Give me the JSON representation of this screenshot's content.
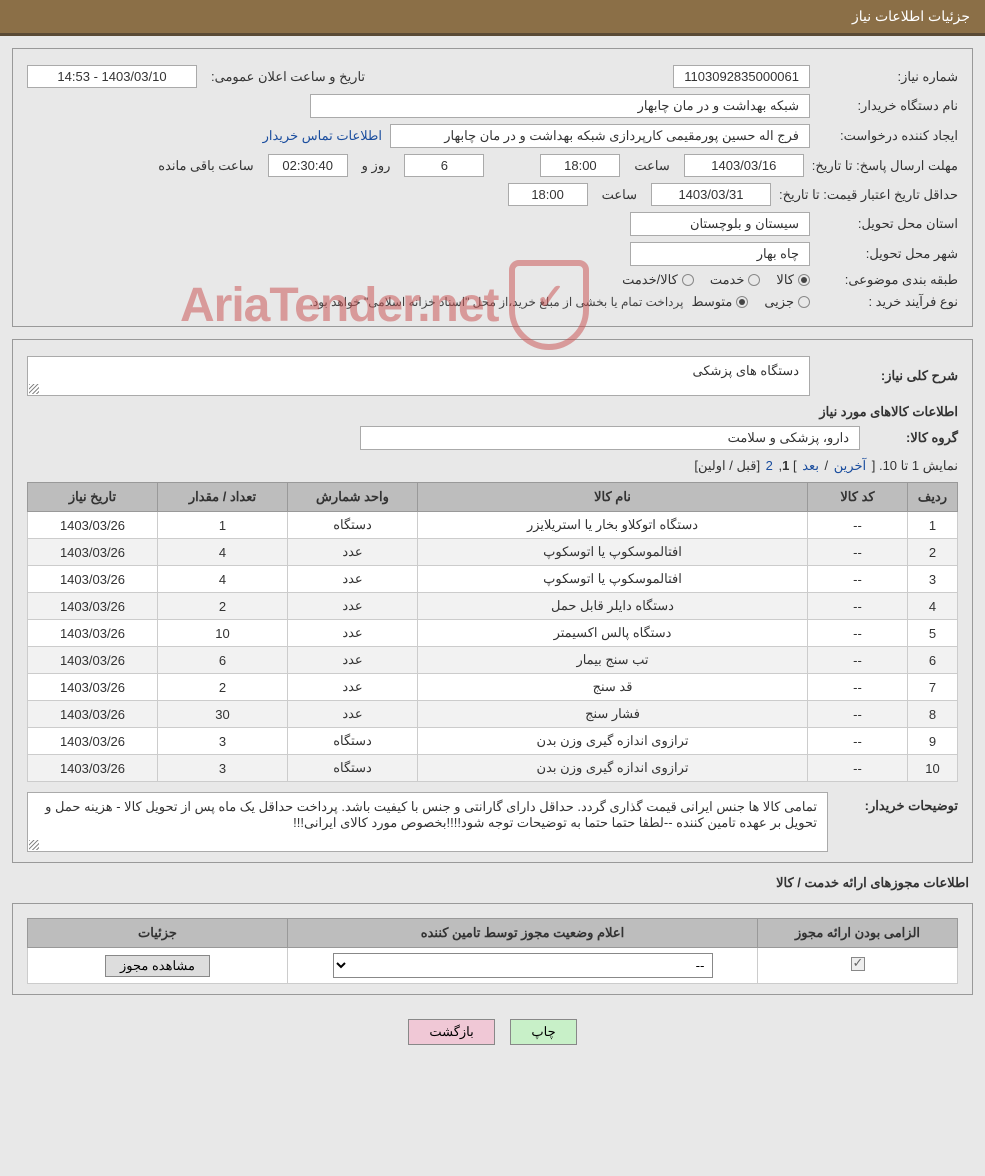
{
  "header": {
    "title": "جزئیات اطلاعات نیاز"
  },
  "fields": {
    "need_no_label": "شماره نیاز:",
    "need_no": "1103092835000061",
    "announce_label": "تاریخ و ساعت اعلان عمومی:",
    "announce_value": "1403/03/10 - 14:53",
    "buyer_org_label": "نام دستگاه خریدار:",
    "buyer_org": "شبکه بهداشت و در مان چابهار",
    "creator_label": "ایجاد کننده درخواست:",
    "creator": "فرج اله حسین پورمقیمی کارپردازی شبکه بهداشت و در مان چابهار",
    "contact_link": "اطلاعات تماس خریدار",
    "deadline_label": "مهلت ارسال پاسخ: تا تاریخ:",
    "deadline_date": "1403/03/16",
    "time_lbl": "ساعت",
    "deadline_time": "18:00",
    "days_val": "6",
    "days_lbl": "روز و",
    "countdown": "02:30:40",
    "remaining_lbl": "ساعت باقی مانده",
    "validity_label": "حداقل تاریخ اعتبار قیمت: تا تاریخ:",
    "validity_date": "1403/03/31",
    "validity_time": "18:00",
    "province_label": "استان محل تحویل:",
    "province": "سیستان و بلوچستان",
    "city_label": "شهر محل تحویل:",
    "city": "چاه بهار",
    "category_label": "طبقه بندی موضوعی:",
    "cat_goods": "کالا",
    "cat_service": "خدمت",
    "cat_both": "کالا/خدمت",
    "process_label": "نوع فرآیند خرید :",
    "proc_partial": "جزیی",
    "proc_medium": "متوسط",
    "process_note": "پرداخت تمام یا بخشی از مبلغ خرید،از محل \"اسناد خزانه اسلامی\" خواهد بود."
  },
  "need_desc": {
    "title_label": "شرح کلی نیاز:",
    "title_text": "دستگاه های پزشکی",
    "items_heading": "اطلاعات کالاهای مورد نیاز",
    "group_label": "گروه کالا:",
    "group_value": "دارو، پزشکی و سلامت"
  },
  "pagination": {
    "text_prefix": "نمایش 1 تا 10. [ ",
    "last": "آخرین",
    "sep1": " / ",
    "next": "بعد",
    "sep2": " ] ",
    "current": "1",
    "comma": ", ",
    "p2": "2",
    "suffix": " [قبل / اولین]"
  },
  "table": {
    "headers": [
      "ردیف",
      "کد کالا",
      "نام کالا",
      "واحد شمارش",
      "تعداد / مقدار",
      "تاریخ نیاز"
    ],
    "rows": [
      [
        "1",
        "--",
        "دستگاه اتوکلاو بخار یا استریلایزر",
        "دستگاه",
        "1",
        "1403/03/26"
      ],
      [
        "2",
        "--",
        "افتالموسکوپ یا اتوسکوپ",
        "عدد",
        "4",
        "1403/03/26"
      ],
      [
        "3",
        "--",
        "افتالموسکوپ یا اتوسکوپ",
        "عدد",
        "4",
        "1403/03/26"
      ],
      [
        "4",
        "--",
        "دستگاه دایلر قابل حمل",
        "عدد",
        "2",
        "1403/03/26"
      ],
      [
        "5",
        "--",
        "دستگاه پالس اکسیمتر",
        "عدد",
        "10",
        "1403/03/26"
      ],
      [
        "6",
        "--",
        "تب سنج بیمار",
        "عدد",
        "6",
        "1403/03/26"
      ],
      [
        "7",
        "--",
        "قد سنج",
        "عدد",
        "2",
        "1403/03/26"
      ],
      [
        "8",
        "--",
        "فشار سنج",
        "عدد",
        "30",
        "1403/03/26"
      ],
      [
        "9",
        "--",
        "ترازوی اندازه گیری وزن بدن",
        "دستگاه",
        "3",
        "1403/03/26"
      ],
      [
        "10",
        "--",
        "ترازوی اندازه گیری وزن بدن",
        "دستگاه",
        "3",
        "1403/03/26"
      ]
    ]
  },
  "buyer_notes": {
    "label": "توضیحات خریدار:",
    "text": "تمامی کالا ها جنس ایرانی قیمت گذاری گردد. حداقل دارای گارانتی و جنس با کیفیت باشد. پرداخت حداقل یک ماه پس از تحویل کالا - هزینه حمل و تحویل بر عهده تامین کننده --لطفا حتما حتما به توضیحات توجه شود!!!!بخصوص مورد کالای ایرانی!!!"
  },
  "license": {
    "heading": "اطلاعات مجوزهای ارائه خدمت / کالا",
    "col_required": "الزامی بودن ارائه مجوز",
    "col_status": "اعلام وضعیت مجوز توسط تامین کننده",
    "col_details": "جزئیات",
    "combo_value": "--",
    "view_btn": "مشاهده مجوز"
  },
  "footer": {
    "print": "چاپ",
    "back": "بازگشت"
  },
  "watermark": {
    "text": "AriaTender.net"
  },
  "colors": {
    "header_bg": "#8b6f47",
    "panel_border": "#999999",
    "th_bg": "#bdbdbd",
    "link": "#1a4d9e"
  }
}
